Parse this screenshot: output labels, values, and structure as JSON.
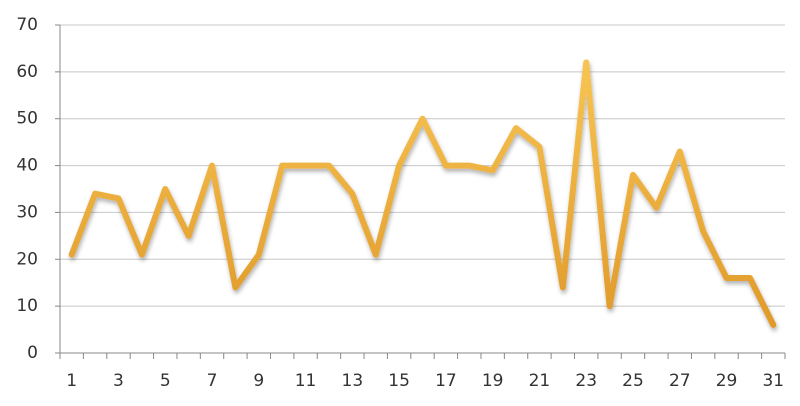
{
  "chart_data": {
    "type": "line",
    "categories": [
      "1",
      null,
      "3",
      null,
      "5",
      null,
      "7",
      null,
      "9",
      null,
      "11",
      null,
      "13",
      null,
      "15",
      null,
      "17",
      null,
      "19",
      null,
      "21",
      null,
      "23",
      null,
      "25",
      null,
      "27",
      null,
      "29",
      null,
      "31"
    ],
    "values": [
      21,
      34,
      33,
      21,
      35,
      25,
      40,
      14,
      21,
      40,
      40,
      40,
      34,
      21,
      40,
      50,
      40,
      40,
      39,
      48,
      44,
      14,
      62,
      10,
      38,
      31,
      43,
      26,
      16,
      16,
      6
    ],
    "color": "#f0b040",
    "ylim": [
      0,
      70
    ],
    "yticks": [
      0,
      10,
      20,
      30,
      40,
      50,
      60,
      70
    ],
    "grid": true
  }
}
